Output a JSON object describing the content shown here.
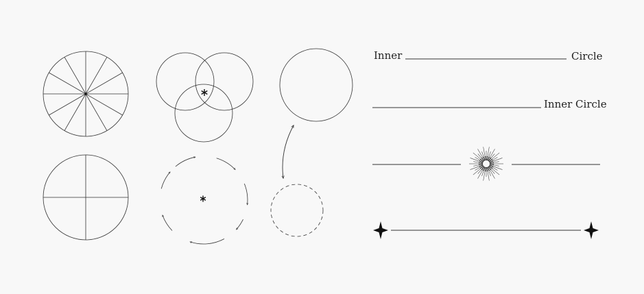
{
  "labels": {
    "row1_left": "Inner",
    "row1_right": "Circle",
    "row2_right": "Inner Circle"
  },
  "colors": {
    "background": "#f8f8f8",
    "stroke": "#333333",
    "mark": "#111111"
  },
  "icons": {
    "sunburst": "sunburst-icon",
    "star": "six-point-star-icon",
    "arrow": "curved-arrow-icon"
  }
}
